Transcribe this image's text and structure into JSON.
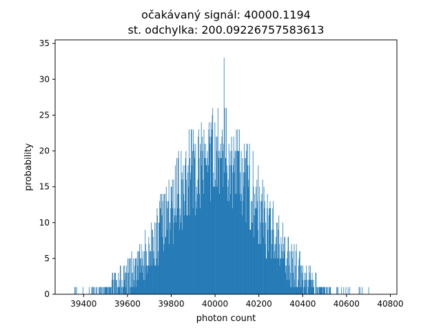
{
  "chart_data": {
    "type": "bar",
    "title_line1": "očakávaný signál: 40000.1194",
    "title_line2": "st. odchylka: 200.09226757583613",
    "xlabel": "photon count",
    "ylabel": "probability",
    "xlim": [
      39270,
      40830
    ],
    "ylim": [
      0,
      35.5
    ],
    "xticks": [
      39400,
      39600,
      39800,
      40000,
      40200,
      40400,
      40600,
      40800
    ],
    "yticks": [
      0,
      5,
      10,
      15,
      20,
      25,
      30,
      35
    ],
    "bar_color": "#1f77b4",
    "distribution": {
      "mean": 40000.1194,
      "std": 200.09226757583613,
      "peak_value": 33,
      "peak_x": 40040
    },
    "grid": false
  }
}
